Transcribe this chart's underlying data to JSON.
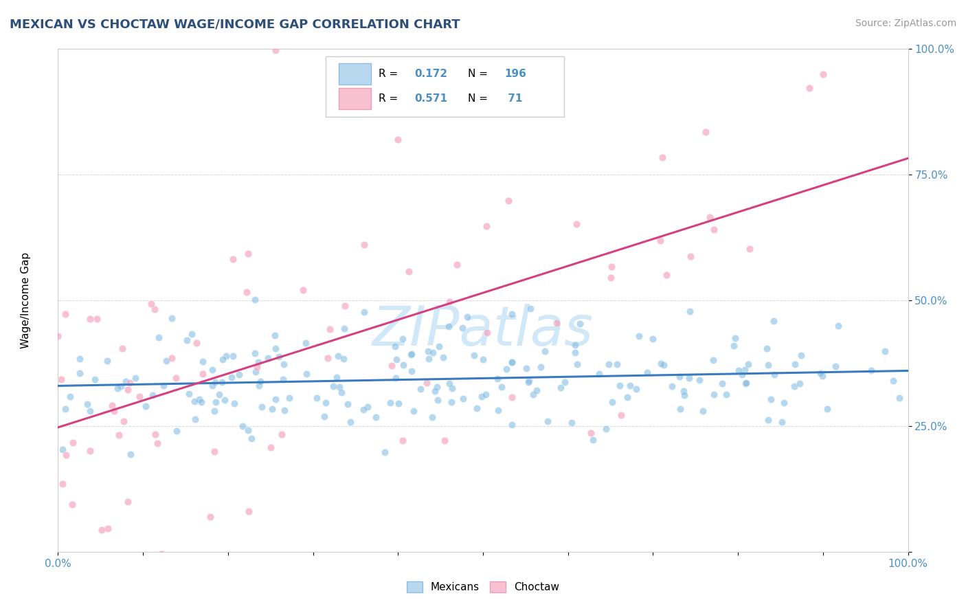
{
  "title": "MEXICAN VS CHOCTAW WAGE/INCOME GAP CORRELATION CHART",
  "source": "Source: ZipAtlas.com",
  "ylabel": "Wage/Income Gap",
  "mexicans_R": 0.172,
  "mexicans_N": 196,
  "choctaw_R": 0.571,
  "choctaw_N": 71,
  "mexicans_color": "#7ab8e0",
  "choctaw_color": "#f4a0bc",
  "mexicans_line_color": "#3a7abf",
  "choctaw_line_color": "#d44080",
  "mexicans_legend_color": "#b8d8f0",
  "choctaw_legend_color": "#f8c0d0",
  "title_color": "#2c4f7c",
  "source_color": "#999999",
  "watermark_color": "#d0e8f8",
  "background_color": "#ffffff",
  "grid_color": "#d0d0d0",
  "tick_label_color": "#4a90c4",
  "xlim": [
    0,
    100
  ],
  "ylim": [
    0,
    100
  ]
}
